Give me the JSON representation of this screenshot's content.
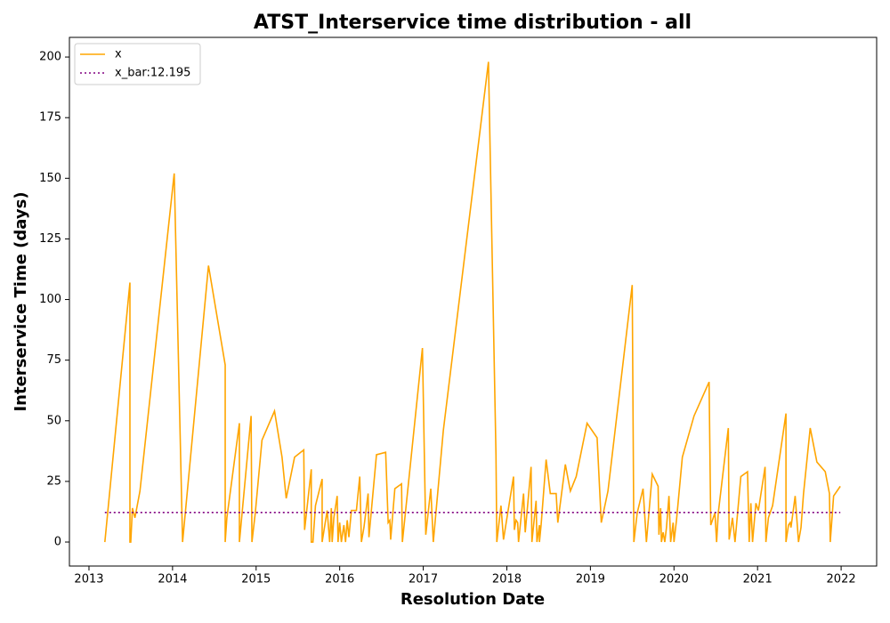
{
  "chart_data": {
    "type": "line",
    "title": "ATST_Interservice time distribution - all",
    "x_label": "Resolution Date",
    "y_label": "Interservice Time (days)",
    "xlim": [
      2012.766,
      2022.425
    ],
    "ylim": [
      -9.9,
      208.1
    ],
    "xticks": [
      2013,
      2014,
      2015,
      2016,
      2017,
      2018,
      2019,
      2020,
      2021,
      2022
    ],
    "yticks": [
      0,
      25,
      50,
      75,
      100,
      125,
      150,
      175,
      200
    ],
    "legend": "upper left",
    "series": [
      {
        "name": "x",
        "color": "#ffa500",
        "dash": "solid",
        "x": [
          2013.19,
          2013.49,
          2013.49,
          2013.5,
          2013.52,
          2013.55,
          2013.61,
          2014.02,
          2014.12,
          2014.43,
          2014.63,
          2014.63,
          2014.65,
          2014.8,
          2014.8,
          2014.94,
          2014.95,
          2014.99,
          2015.07,
          2015.22,
          2015.31,
          2015.36,
          2015.46,
          2015.57,
          2015.58,
          2015.66,
          2015.66,
          2015.68,
          2015.71,
          2015.79,
          2015.79,
          2015.85,
          2015.88,
          2015.9,
          2015.91,
          2015.93,
          2015.97,
          2015.98,
          2016.0,
          2016.02,
          2016.05,
          2016.07,
          2016.09,
          2016.11,
          2016.14,
          2016.2,
          2016.24,
          2016.26,
          2016.29,
          2016.34,
          2016.35,
          2016.44,
          2016.55,
          2016.58,
          2016.6,
          2016.61,
          2016.66,
          2016.74,
          2016.75,
          2016.99,
          2017.03,
          2017.09,
          2017.12,
          2017.24,
          2017.78,
          2017.87,
          2017.88,
          2017.93,
          2017.96,
          2018.08,
          2018.09,
          2018.11,
          2018.13,
          2018.14,
          2018.2,
          2018.22,
          2018.29,
          2018.3,
          2018.35,
          2018.36,
          2018.39,
          2018.39,
          2018.41,
          2018.47,
          2018.52,
          2018.59,
          2018.61,
          2018.7,
          2018.76,
          2018.83,
          2018.96,
          2019.08,
          2019.13,
          2019.21,
          2019.5,
          2019.52,
          2019.56,
          2019.63,
          2019.67,
          2019.74,
          2019.81,
          2019.82,
          2019.84,
          2019.85,
          2019.87,
          2019.89,
          2019.91,
          2019.94,
          2019.96,
          2019.99,
          2020.0,
          2020.03,
          2020.1,
          2020.24,
          2020.42,
          2020.44,
          2020.49,
          2020.51,
          2020.53,
          2020.65,
          2020.66,
          2020.7,
          2020.73,
          2020.8,
          2020.88,
          2020.9,
          2020.92,
          2020.94,
          2020.98,
          2021.01,
          2021.09,
          2021.1,
          2021.13,
          2021.18,
          2021.34,
          2021.34,
          2021.37,
          2021.39,
          2021.4,
          2021.45,
          2021.49,
          2021.52,
          2021.55,
          2021.63,
          2021.71,
          2021.81,
          2021.86,
          2021.87,
          2021.91,
          2021.99
        ],
        "values": [
          0,
          107,
          0,
          0,
          14,
          10,
          21,
          152,
          0,
          114,
          73,
          0,
          10,
          49,
          0,
          52,
          0,
          12,
          42,
          54,
          35,
          18,
          35,
          38,
          5,
          30,
          0,
          0,
          15,
          26,
          0,
          13,
          0,
          14,
          0,
          10,
          19,
          0,
          8,
          0,
          7,
          0,
          9,
          2,
          13,
          13,
          27,
          0,
          6,
          20,
          2,
          36,
          37,
          8,
          9,
          1,
          22,
          24,
          0,
          80,
          3,
          22,
          0,
          46,
          198,
          36,
          0,
          15,
          1,
          27,
          5,
          9,
          8,
          0,
          20,
          4,
          31,
          0,
          17,
          0,
          7,
          0,
          7,
          34,
          20,
          20,
          8,
          32,
          21,
          27,
          49,
          43,
          8,
          21,
          106,
          0,
          12,
          22,
          0,
          28,
          23,
          3,
          14,
          0,
          4,
          0,
          6,
          19,
          0,
          8,
          0,
          9,
          35,
          52,
          66,
          7,
          12,
          0,
          12,
          47,
          1,
          10,
          0,
          27,
          29,
          0,
          16,
          0,
          16,
          13,
          31,
          0,
          10,
          15,
          53,
          0,
          7,
          8,
          6,
          19,
          0,
          6,
          20,
          47,
          33,
          29,
          20,
          0,
          19,
          23
        ]
      },
      {
        "name": "x_bar:12.195",
        "color": "#800080",
        "dash": "dotted",
        "x": [
          2013.19,
          2021.99
        ],
        "values": [
          12.195,
          12.195
        ]
      }
    ]
  }
}
